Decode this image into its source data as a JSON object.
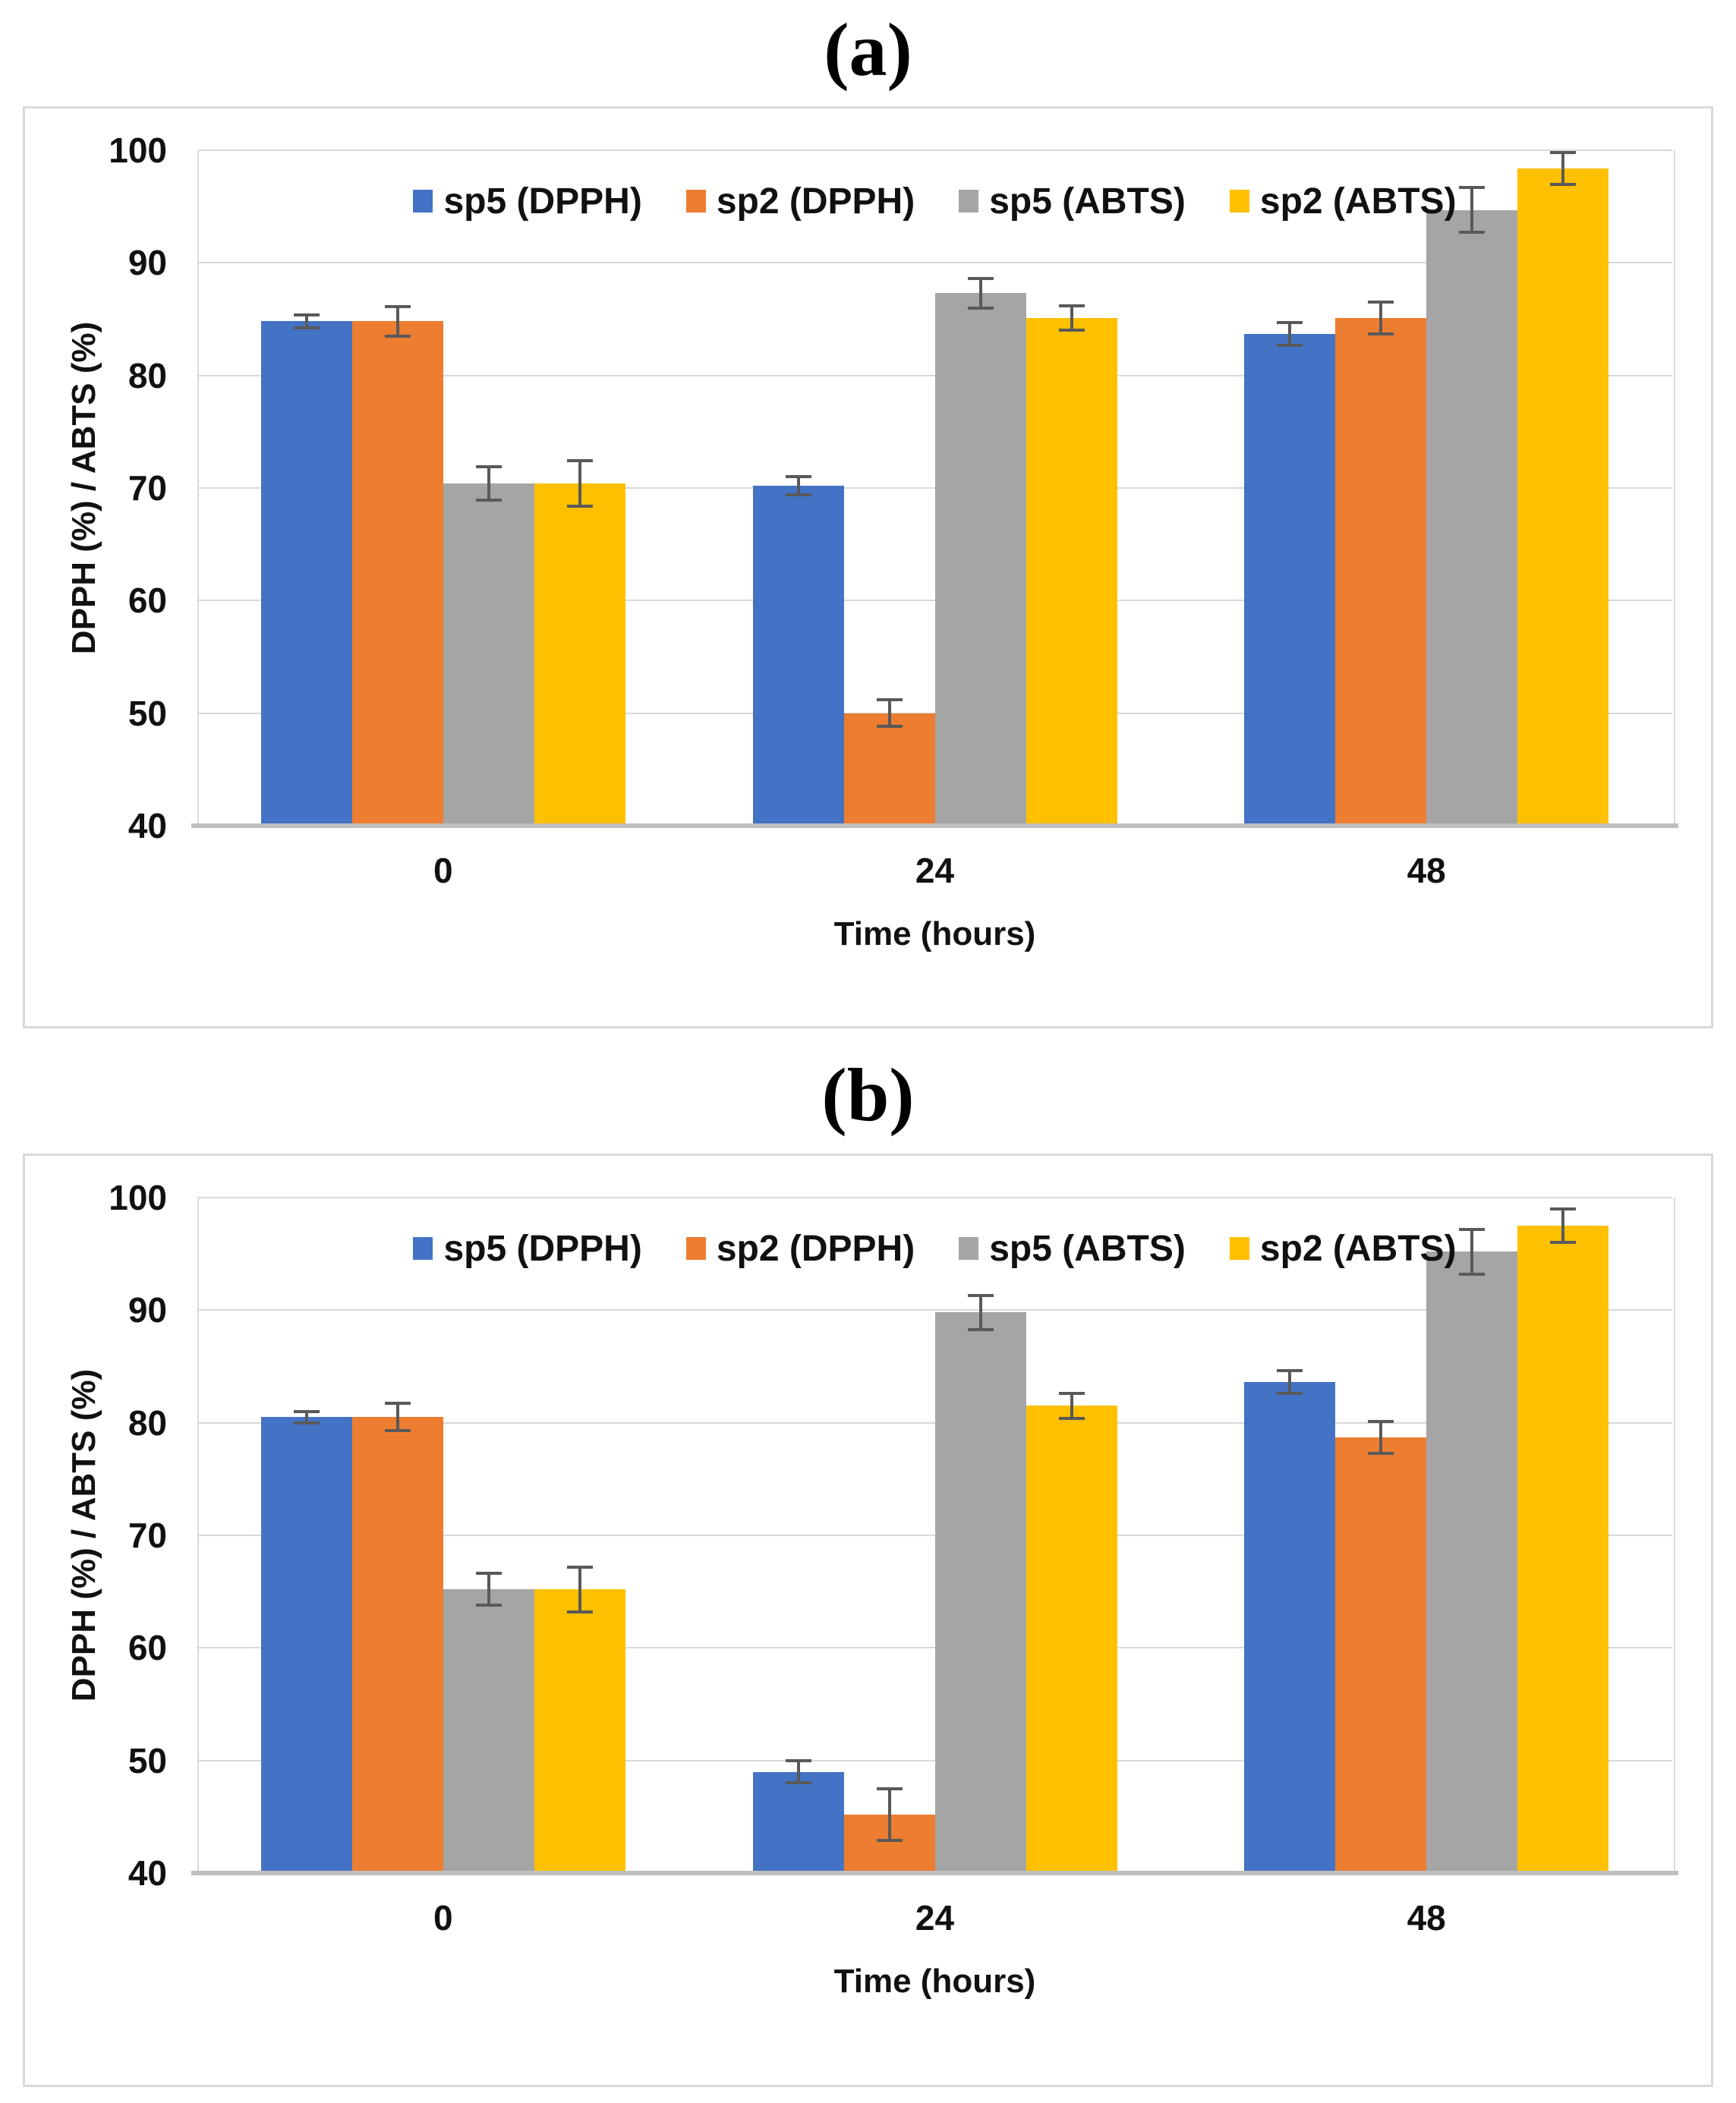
{
  "figure": {
    "background": "#ffffff",
    "panel_border_color": "#d9d9d9",
    "gridline_color": "#d9d9d9",
    "axis_line_color": "#bfbfbf",
    "error_bar_color": "#595959"
  },
  "chart_data": [
    {
      "panel_label": "(a)",
      "type": "bar",
      "categories": [
        "0",
        "24",
        "48"
      ],
      "series": [
        {
          "name": "sp5 (DPPH)",
          "color": "#4472C4",
          "values": [
            84.8,
            70.2,
            83.7
          ],
          "errors": [
            0.6,
            0.8,
            1.0
          ]
        },
        {
          "name": "sp2 (DPPH)",
          "color": "#ED7D31",
          "values": [
            84.8,
            50.0,
            85.1
          ],
          "errors": [
            1.3,
            1.2,
            1.4
          ]
        },
        {
          "name": "sp5 (ABTS)",
          "color": "#A5A5A5",
          "values": [
            70.4,
            87.3,
            94.7
          ],
          "errors": [
            1.5,
            1.3,
            2.0
          ]
        },
        {
          "name": "sp2 (ABTS)",
          "color": "#FFC000",
          "values": [
            70.4,
            85.1,
            98.4
          ],
          "errors": [
            2.0,
            1.1,
            1.4
          ]
        }
      ],
      "xlabel": "Time (hours)",
      "ylabel": "DPPH (%) / ABTS (%)",
      "ylim": [
        40,
        100
      ],
      "ytick_step": 10,
      "grid": true,
      "legend_position": "top-center"
    },
    {
      "panel_label": "(b)",
      "type": "bar",
      "categories": [
        "0",
        "24",
        "48"
      ],
      "series": [
        {
          "name": "sp5 (DPPH)",
          "color": "#4472C4",
          "values": [
            80.5,
            49.0,
            83.6
          ],
          "errors": [
            0.5,
            1.0,
            1.0
          ]
        },
        {
          "name": "sp2 (DPPH)",
          "color": "#ED7D31",
          "values": [
            80.5,
            45.2,
            78.7
          ],
          "errors": [
            1.2,
            2.3,
            1.4
          ]
        },
        {
          "name": "sp5 (ABTS)",
          "color": "#A5A5A5",
          "values": [
            65.2,
            89.8,
            95.2
          ],
          "errors": [
            1.4,
            1.5,
            2.0
          ]
        },
        {
          "name": "sp2 (ABTS)",
          "color": "#FFC000",
          "values": [
            65.2,
            81.5,
            97.5
          ],
          "errors": [
            2.0,
            1.1,
            1.5
          ]
        }
      ],
      "xlabel": "Time (hours)",
      "ylabel": "DPPH (%) / ABTS (%)",
      "ylim": [
        40,
        100
      ],
      "ytick_step": 10,
      "grid": true,
      "legend_position": "top-center"
    }
  ]
}
